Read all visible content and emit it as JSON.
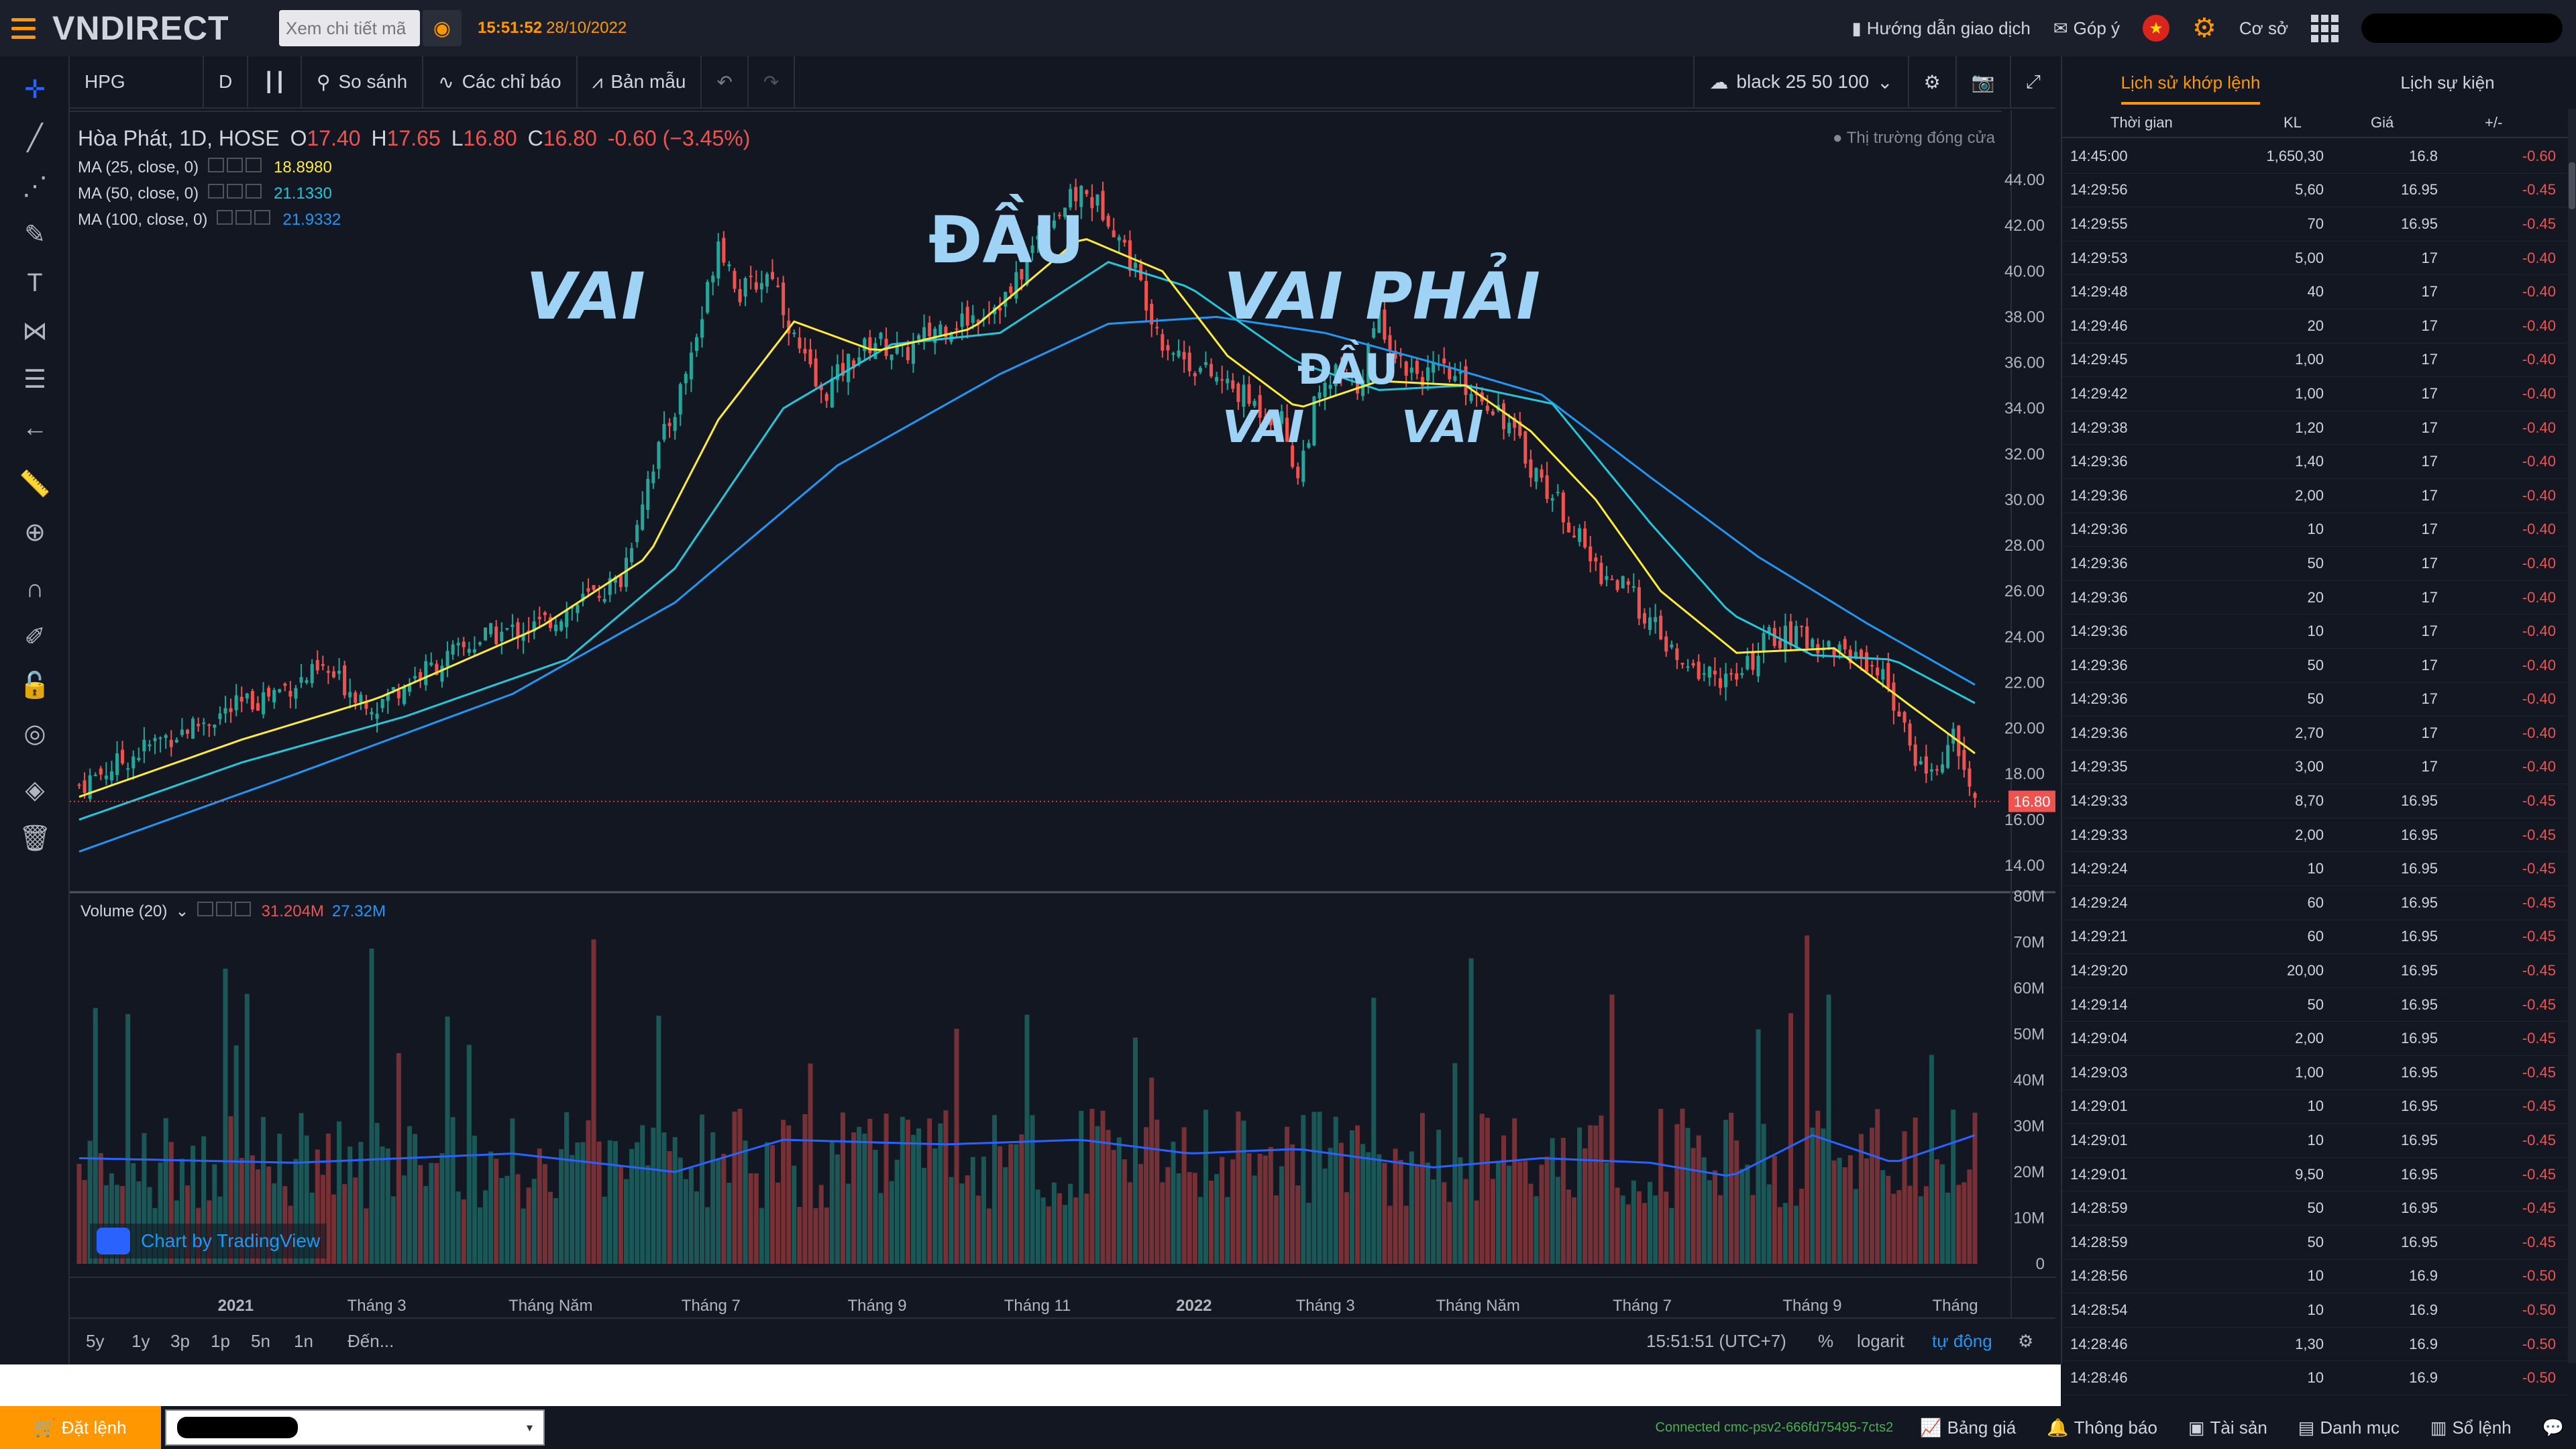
{
  "header": {
    "logo": "VNDIRECT",
    "search_placeholder": "Xem chi tiết mã",
    "time": "15:51:52",
    "date": "28/10/2022",
    "guide": "Hướng dẫn giao dịch",
    "feedback": "Góp ý",
    "mode": "Cơ sở"
  },
  "toolbar": {
    "symbol": "HPG",
    "interval": "D",
    "compare": "So sánh",
    "indicators": "Các chỉ báo",
    "template": "Bản mẫu",
    "theme": "black 25 50 100"
  },
  "legend": {
    "title": "Hòa Phát, 1D, HOSE",
    "o_label": "O",
    "o": "17.40",
    "h_label": "H",
    "h": "17.65",
    "l_label": "L",
    "l": "16.80",
    "c_label": "C",
    "c": "16.80",
    "change": "-0.60 (−3.45%)",
    "market_status": "Thị trường đóng cửa",
    "ma": [
      {
        "label": "MA (25, close, 0)",
        "value": "18.8980",
        "color": "#ffeb3b"
      },
      {
        "label": "MA (50, close, 0)",
        "value": "21.1330",
        "color": "#26c6da"
      },
      {
        "label": "MA (100, close, 0)",
        "value": "21.9332",
        "color": "#2196f3"
      }
    ],
    "volume_label": "Volume (20)",
    "volume_value": "31.204M",
    "volume_ma": "27.32M"
  },
  "annotations": {
    "head": "ĐẦU",
    "left_shoulder": "VAI",
    "right_shoulder_big": "VAI PHẢI",
    "small_head": "ĐẦU",
    "small_vai1": "VAI",
    "small_vai2": "VAI"
  },
  "chart_data": {
    "type": "candlestick",
    "symbol": "HPG",
    "price_axis": [
      "44.00",
      "42.00",
      "40.00",
      "38.00",
      "36.00",
      "34.00",
      "32.00",
      "30.00",
      "28.00",
      "26.00",
      "24.00",
      "22.00",
      "20.00",
      "18.00",
      "16.00",
      "14.00"
    ],
    "last_price": "16.80",
    "volume_axis": [
      "80M",
      "70M",
      "60M",
      "50M",
      "40M",
      "30M",
      "20M",
      "10M",
      "0"
    ],
    "x_axis": [
      "2021",
      "Tháng 3",
      "Tháng Năm",
      "Tháng 7",
      "Tháng 9",
      "Tháng 11",
      "2022",
      "Tháng 3",
      "Tháng Năm",
      "Tháng 7",
      "Tháng 9",
      "Tháng"
    ],
    "close_path": [
      [
        0,
        17.5
      ],
      [
        15,
        19.5
      ],
      [
        30,
        21
      ],
      [
        45,
        22.5
      ],
      [
        55,
        21
      ],
      [
        60,
        22
      ],
      [
        75,
        24
      ],
      [
        85,
        24.5
      ],
      [
        100,
        26.5
      ],
      [
        105,
        31
      ],
      [
        110,
        34
      ],
      [
        115,
        38
      ],
      [
        118,
        41.5
      ],
      [
        122,
        39
      ],
      [
        128,
        40
      ],
      [
        132,
        37
      ],
      [
        137,
        34.5
      ],
      [
        142,
        36
      ],
      [
        147,
        37
      ],
      [
        152,
        36.3
      ],
      [
        158,
        37.5
      ],
      [
        165,
        38
      ],
      [
        172,
        39
      ],
      [
        178,
        42
      ],
      [
        185,
        43.5
      ],
      [
        190,
        42.5
      ],
      [
        195,
        40
      ],
      [
        200,
        37
      ],
      [
        205,
        36
      ],
      [
        212,
        35
      ],
      [
        218,
        34
      ],
      [
        222,
        33.5
      ],
      [
        225,
        31
      ],
      [
        228,
        34
      ],
      [
        232,
        35.5
      ],
      [
        236,
        35
      ],
      [
        240,
        38
      ],
      [
        244,
        36
      ],
      [
        248,
        35.5
      ],
      [
        252,
        35.5
      ],
      [
        256,
        35
      ],
      [
        262,
        34
      ],
      [
        268,
        31.5
      ],
      [
        274,
        29.5
      ],
      [
        280,
        27
      ],
      [
        286,
        26
      ],
      [
        292,
        24
      ],
      [
        296,
        22.5
      ],
      [
        300,
        22.5
      ],
      [
        306,
        22
      ],
      [
        312,
        24
      ],
      [
        318,
        24
      ],
      [
        324,
        23.5
      ],
      [
        330,
        23
      ],
      [
        334,
        22
      ],
      [
        338,
        19
      ],
      [
        342,
        18
      ],
      [
        346,
        19.5
      ],
      [
        350,
        16.8
      ]
    ],
    "ma25_path": [
      [
        0,
        17
      ],
      [
        30,
        19.5
      ],
      [
        55,
        21.3
      ],
      [
        85,
        24.4
      ],
      [
        105,
        27.5
      ],
      [
        118,
        33.5
      ],
      [
        132,
        37.8
      ],
      [
        147,
        36.5
      ],
      [
        165,
        37.5
      ],
      [
        185,
        41.5
      ],
      [
        200,
        40
      ],
      [
        212,
        36.3
      ],
      [
        225,
        34
      ],
      [
        240,
        35.2
      ],
      [
        256,
        35
      ],
      [
        268,
        33
      ],
      [
        280,
        30
      ],
      [
        292,
        26
      ],
      [
        306,
        23.3
      ],
      [
        324,
        23.5
      ],
      [
        338,
        21
      ],
      [
        350,
        18.9
      ]
    ],
    "ma50_path": [
      [
        0,
        16
      ],
      [
        30,
        18.5
      ],
      [
        60,
        20.5
      ],
      [
        90,
        23
      ],
      [
        110,
        27
      ],
      [
        130,
        34
      ],
      [
        150,
        36.8
      ],
      [
        170,
        37.3
      ],
      [
        190,
        40.4
      ],
      [
        205,
        39.3
      ],
      [
        225,
        36
      ],
      [
        240,
        34.8
      ],
      [
        256,
        35
      ],
      [
        272,
        34.2
      ],
      [
        290,
        29
      ],
      [
        305,
        25
      ],
      [
        320,
        23.2
      ],
      [
        335,
        23
      ],
      [
        350,
        21.1
      ]
    ],
    "ma100_path": [
      [
        0,
        14.6
      ],
      [
        40,
        18
      ],
      [
        80,
        21.5
      ],
      [
        110,
        25.5
      ],
      [
        140,
        31.5
      ],
      [
        170,
        35.5
      ],
      [
        190,
        37.7
      ],
      [
        210,
        38
      ],
      [
        230,
        37.3
      ],
      [
        250,
        36
      ],
      [
        270,
        34.6
      ],
      [
        290,
        31
      ],
      [
        310,
        27.5
      ],
      [
        330,
        24.6
      ],
      [
        350,
        21.9
      ]
    ],
    "volume_ma_path": [
      [
        0,
        23
      ],
      [
        40,
        22
      ],
      [
        80,
        24
      ],
      [
        110,
        20
      ],
      [
        130,
        27
      ],
      [
        160,
        26
      ],
      [
        185,
        27
      ],
      [
        205,
        24
      ],
      [
        225,
        25
      ],
      [
        250,
        21
      ],
      [
        270,
        23
      ],
      [
        290,
        22
      ],
      [
        305,
        19
      ],
      [
        320,
        28
      ],
      [
        335,
        22
      ],
      [
        350,
        28
      ]
    ]
  },
  "ranges": [
    "5y",
    "1y",
    "3p",
    "1p",
    "5n",
    "1n"
  ],
  "range_goto": "Đến...",
  "clock_status": "15:51:51 (UTC+7)",
  "scale_opts": {
    "pct": "%",
    "log": "logarit",
    "auto": "tự động"
  },
  "tv_badge": "Chart by TradingView",
  "trades_panel": {
    "tabs": [
      "Lịch sử khớp lệnh",
      "Lịch sự kiện"
    ],
    "columns": [
      "Thời gian",
      "KL",
      "Giá",
      "+/-"
    ],
    "rows": [
      [
        "14:45:00",
        "1,650,30",
        "16.8",
        "-0.60"
      ],
      [
        "14:29:56",
        "5,60",
        "16.95",
        "-0.45"
      ],
      [
        "14:29:55",
        "70",
        "16.95",
        "-0.45"
      ],
      [
        "14:29:53",
        "5,00",
        "17",
        "-0.40"
      ],
      [
        "14:29:48",
        "40",
        "17",
        "-0.40"
      ],
      [
        "14:29:46",
        "20",
        "17",
        "-0.40"
      ],
      [
        "14:29:45",
        "1,00",
        "17",
        "-0.40"
      ],
      [
        "14:29:42",
        "1,00",
        "17",
        "-0.40"
      ],
      [
        "14:29:38",
        "1,20",
        "17",
        "-0.40"
      ],
      [
        "14:29:36",
        "1,40",
        "17",
        "-0.40"
      ],
      [
        "14:29:36",
        "2,00",
        "17",
        "-0.40"
      ],
      [
        "14:29:36",
        "10",
        "17",
        "-0.40"
      ],
      [
        "14:29:36",
        "50",
        "17",
        "-0.40"
      ],
      [
        "14:29:36",
        "20",
        "17",
        "-0.40"
      ],
      [
        "14:29:36",
        "10",
        "17",
        "-0.40"
      ],
      [
        "14:29:36",
        "50",
        "17",
        "-0.40"
      ],
      [
        "14:29:36",
        "50",
        "17",
        "-0.40"
      ],
      [
        "14:29:36",
        "2,70",
        "17",
        "-0.40"
      ],
      [
        "14:29:35",
        "3,00",
        "17",
        "-0.40"
      ],
      [
        "14:29:33",
        "8,70",
        "16.95",
        "-0.45"
      ],
      [
        "14:29:33",
        "2,00",
        "16.95",
        "-0.45"
      ],
      [
        "14:29:24",
        "10",
        "16.95",
        "-0.45"
      ],
      [
        "14:29:24",
        "60",
        "16.95",
        "-0.45"
      ],
      [
        "14:29:21",
        "60",
        "16.95",
        "-0.45"
      ],
      [
        "14:29:20",
        "20,00",
        "16.95",
        "-0.45"
      ],
      [
        "14:29:14",
        "50",
        "16.95",
        "-0.45"
      ],
      [
        "14:29:04",
        "2,00",
        "16.95",
        "-0.45"
      ],
      [
        "14:29:03",
        "1,00",
        "16.95",
        "-0.45"
      ],
      [
        "14:29:01",
        "10",
        "16.95",
        "-0.45"
      ],
      [
        "14:29:01",
        "10",
        "16.95",
        "-0.45"
      ],
      [
        "14:29:01",
        "9,50",
        "16.95",
        "-0.45"
      ],
      [
        "14:28:59",
        "50",
        "16.95",
        "-0.45"
      ],
      [
        "14:28:59",
        "50",
        "16.95",
        "-0.45"
      ],
      [
        "14:28:56",
        "10",
        "16.9",
        "-0.50"
      ],
      [
        "14:28:54",
        "10",
        "16.9",
        "-0.50"
      ],
      [
        "14:28:46",
        "1,30",
        "16.9",
        "-0.50"
      ],
      [
        "14:28:46",
        "10",
        "16.9",
        "-0.50"
      ]
    ]
  },
  "footer": {
    "order": "Đặt lệnh",
    "connection": "Connected cmc-psv2-666fd75495-7cts2",
    "items": [
      "Bảng giá",
      "Thông báo",
      "Tài sản",
      "Danh mục",
      "Sổ lệnh"
    ]
  }
}
